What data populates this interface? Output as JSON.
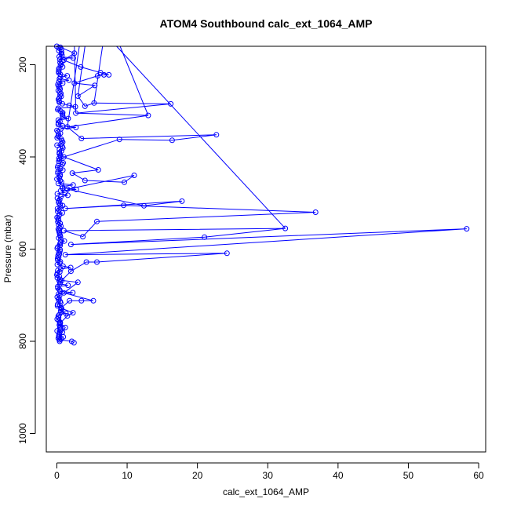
{
  "chart_data": {
    "type": "line",
    "title": "ATOM4 Southbound calc_ext_1064_AMP",
    "xlabel": "calc_ext_1064_AMP",
    "ylabel": "Pressure (mbar)",
    "xlim": [
      -1.5,
      61
    ],
    "ylim": [
      1040,
      160
    ],
    "y_reversed": true,
    "grid": false,
    "legend": "none",
    "color": "#0000ff",
    "x_ticks": [
      "0",
      "10",
      "20",
      "30",
      "40",
      "50",
      "60"
    ],
    "y_ticks": [
      "200",
      "400",
      "600",
      "800",
      "1000"
    ],
    "series": [
      {
        "values": [
          {
            "x": 0.4,
            "y": 800
          },
          {
            "x": 0.6,
            "y": 795
          },
          {
            "x": 0.3,
            "y": 790
          },
          {
            "x": 0.8,
            "y": 780
          },
          {
            "x": 1.2,
            "y": 770
          },
          {
            "x": 0.5,
            "y": 760
          },
          {
            "x": 1.5,
            "y": 745
          },
          {
            "x": 2.3,
            "y": 738
          },
          {
            "x": 0.6,
            "y": 728
          },
          {
            "x": 1.8,
            "y": 712
          },
          {
            "x": 3.5,
            "y": 712
          },
          {
            "x": 5.2,
            "y": 712
          },
          {
            "x": 1.0,
            "y": 695
          },
          {
            "x": 3.0,
            "y": 672
          },
          {
            "x": 0.7,
            "y": 668
          },
          {
            "x": 2.0,
            "y": 648
          },
          {
            "x": 4.2,
            "y": 628
          },
          {
            "x": 5.7,
            "y": 628
          },
          {
            "x": 24.2,
            "y": 609
          },
          {
            "x": 1.2,
            "y": 612
          },
          {
            "x": 58.3,
            "y": 556
          },
          {
            "x": 2.0,
            "y": 590
          },
          {
            "x": 21.0,
            "y": 574
          },
          {
            "x": 32.5,
            "y": 555
          },
          {
            "x": 1.0,
            "y": 560
          },
          {
            "x": 3.7,
            "y": 573
          },
          {
            "x": 5.7,
            "y": 540
          },
          {
            "x": 36.8,
            "y": 520
          },
          {
            "x": 9.5,
            "y": 505
          },
          {
            "x": 1.2,
            "y": 512
          },
          {
            "x": 17.8,
            "y": 496
          },
          {
            "x": 12.4,
            "y": 506
          },
          {
            "x": 1.5,
            "y": 470
          },
          {
            "x": 11.0,
            "y": 440
          },
          {
            "x": 9.6,
            "y": 455
          },
          {
            "x": 4.0,
            "y": 451
          },
          {
            "x": 2.2,
            "y": 435
          },
          {
            "x": 5.9,
            "y": 428
          },
          {
            "x": 1.0,
            "y": 400
          },
          {
            "x": 8.9,
            "y": 362
          },
          {
            "x": 16.4,
            "y": 364
          },
          {
            "x": 22.7,
            "y": 352
          },
          {
            "x": 3.5,
            "y": 360
          },
          {
            "x": 1.5,
            "y": 335
          },
          {
            "x": 13.0,
            "y": 310
          },
          {
            "x": 2.7,
            "y": 305
          },
          {
            "x": 16.2,
            "y": 285
          },
          {
            "x": 5.3,
            "y": 283
          },
          {
            "x": 4.0,
            "y": 290
          },
          {
            "x": 3.0,
            "y": 268
          },
          {
            "x": 5.4,
            "y": 245
          },
          {
            "x": 2.5,
            "y": 240
          },
          {
            "x": 5.8,
            "y": 224
          },
          {
            "x": 6.7,
            "y": 222
          },
          {
            "x": 7.4,
            "y": 222
          },
          {
            "x": 6.2,
            "y": 217
          },
          {
            "x": 3.4,
            "y": 205
          },
          {
            "x": 1.0,
            "y": 190
          },
          {
            "x": 2.5,
            "y": 175
          },
          {
            "x": 0.5,
            "y": 162
          }
        ]
      }
    ]
  }
}
